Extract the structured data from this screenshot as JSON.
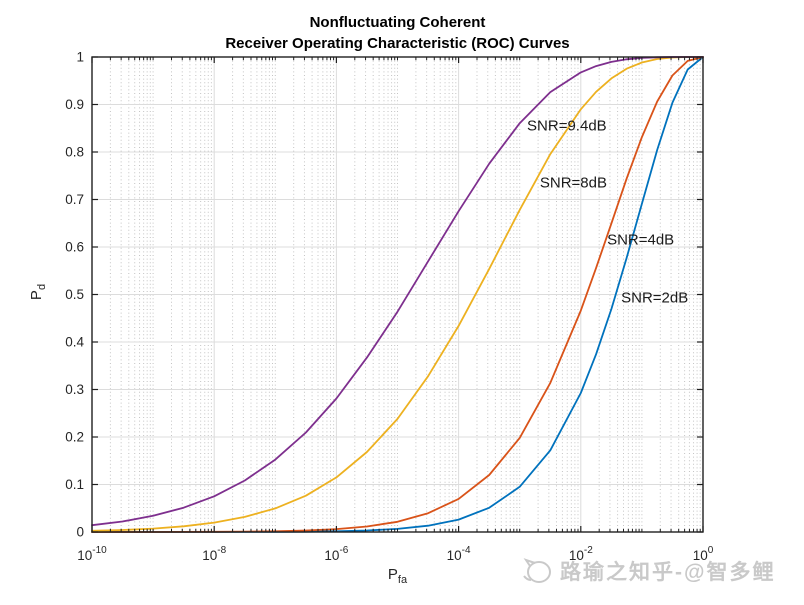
{
  "chart_data": {
    "type": "line",
    "title_line1": "Nonfluctuating Coherent",
    "title_line2": "Receiver Operating Characteristic (ROC) Curves",
    "xlabel": {
      "base": "P",
      "sub": "fa"
    },
    "ylabel": {
      "base": "P",
      "sub": "d"
    },
    "x_axis": {
      "scale": "log10",
      "min_exp": -10,
      "max_exp": 0,
      "major_ticks": [
        {
          "exp": -10,
          "base": "10",
          "exp_label": "-10"
        },
        {
          "exp": -8,
          "base": "10",
          "exp_label": "-8"
        },
        {
          "exp": -6,
          "base": "10",
          "exp_label": "-6"
        },
        {
          "exp": -4,
          "base": "10",
          "exp_label": "-4"
        },
        {
          "exp": -2,
          "base": "10",
          "exp_label": "-2"
        },
        {
          "exp": 0,
          "base": "10",
          "exp_label": "0"
        }
      ]
    },
    "y_axis": {
      "min": 0,
      "max": 1,
      "ticks": [
        {
          "value": 0,
          "label": "0"
        },
        {
          "value": 0.1,
          "label": "0.1"
        },
        {
          "value": 0.2,
          "label": "0.2"
        },
        {
          "value": 0.3,
          "label": "0.3"
        },
        {
          "value": 0.4,
          "label": "0.4"
        },
        {
          "value": 0.5,
          "label": "0.5"
        },
        {
          "value": 0.6,
          "label": "0.6"
        },
        {
          "value": 0.7,
          "label": "0.7"
        },
        {
          "value": 0.8,
          "label": "0.8"
        },
        {
          "value": 0.9,
          "label": "0.9"
        },
        {
          "value": 1,
          "label": "1"
        }
      ]
    },
    "grid": {
      "major": "on",
      "minor": "on",
      "legend": "none"
    },
    "x_log": [
      -10,
      -9.5,
      -9,
      -8.5,
      -8,
      -7.5,
      -7,
      -6.5,
      -6,
      -5.5,
      -5,
      -4.5,
      -4,
      -3.5,
      -3,
      -2.5,
      -2,
      -1.75,
      -1.5,
      -1.25,
      -1,
      -0.75,
      -0.5,
      -0.25,
      0
    ],
    "series": [
      {
        "label": "SNR=2dB",
        "snr_db": 2,
        "color": "#0072BD",
        "pd": [
          2.3e-06,
          5.3e-06,
          1.24e-05,
          2.8e-05,
          6.4e-05,
          0.000143,
          0.000314,
          0.000684,
          0.00147,
          0.00314,
          0.00649,
          0.0133,
          0.0262,
          0.0509,
          0.0952,
          0.172,
          0.2926,
          0.3744,
          0.4694,
          0.5768,
          0.691,
          0.8044,
          0.9036,
          0.9736,
          1
        ]
      },
      {
        "label": "SNR=4dB",
        "snr_db": 4,
        "color": "#D95319",
        "pd": [
          1.9e-05,
          4e-05,
          8.6e-05,
          0.000182,
          0.000375,
          0.00077,
          0.00155,
          0.00307,
          0.006,
          0.01155,
          0.0215,
          0.0395,
          0.0697,
          0.1199,
          0.198,
          0.3138,
          0.4662,
          0.5559,
          0.6496,
          0.7437,
          0.8314,
          0.9063,
          0.9611,
          0.9918,
          1
        ]
      },
      {
        "label": "SNR=8dB",
        "snr_db": 8,
        "color": "#EDB120",
        "pd": [
          0.00248,
          0.00425,
          0.00723,
          0.01209,
          0.01972,
          0.03177,
          0.04978,
          0.07642,
          0.11486,
          0.16835,
          0.2381,
          0.328,
          0.4338,
          0.5538,
          0.678,
          0.7955,
          0.8899,
          0.9267,
          0.955,
          0.9753,
          0.9884,
          0.9957,
          0.9989,
          0.9999,
          1
        ]
      },
      {
        "label": "SNR=9.4dB",
        "snr_db": 9.4,
        "color": "#7E2F8E",
        "pd": [
          0.01435,
          0.0222,
          0.0341,
          0.0512,
          0.0752,
          0.1085,
          0.1525,
          0.2095,
          0.281,
          0.3672,
          0.4637,
          0.5698,
          0.6753,
          0.7754,
          0.8607,
          0.9261,
          0.9676,
          0.9809,
          0.9897,
          0.9952,
          0.9981,
          0.9994,
          0.9999,
          0.99999,
          1
        ]
      }
    ],
    "annotations": [
      {
        "text": "SNR=9.4dB",
        "x_log": -2.88,
        "pd": 0.855
      },
      {
        "text": "SNR=8dB",
        "x_log": -2.67,
        "pd": 0.735
      },
      {
        "text": "SNR=4dB",
        "x_log": -1.57,
        "pd": 0.615
      },
      {
        "text": "SNR=2dB",
        "x_log": -1.34,
        "pd": 0.493
      }
    ]
  },
  "watermark": {
    "text": "路瑜之知乎-@智多鲤"
  },
  "colors": {
    "axis": "#1f1f1f",
    "tick_label": "#262626",
    "grid_major": "#dcdcdc",
    "grid_minor": "#c4c4c4",
    "title": "#000000",
    "watermark": "#c9c9c9"
  }
}
